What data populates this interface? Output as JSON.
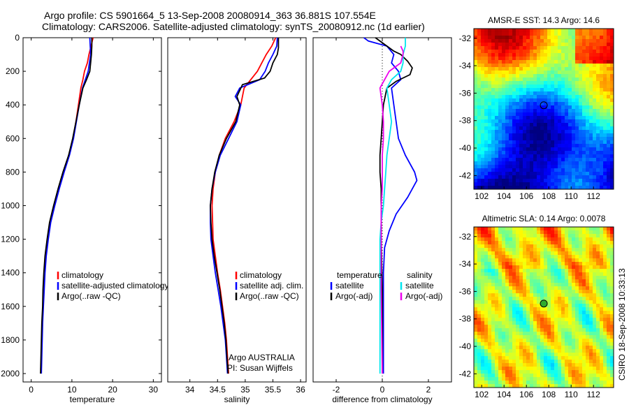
{
  "figure": {
    "title_line1": "Argo profile: CS 5901664_5 13-Sep-2008 20080914_363 36.881S 107.554E",
    "title_line2": "Climatology: CARS2006. Satellite-adjusted climatology: synTS_20080912.nc (1d earlier)",
    "side_label": "CSIRO 18-Sep-2008 10:33:13",
    "annotation_line1": "Argo AUSTRALIA",
    "annotation_line2": "PI: Susan Wijffels"
  },
  "colors": {
    "climatology": "#ff0000",
    "satellite": "#0000ff",
    "argo": "#000000",
    "salinity_satellite": "#00e5ee",
    "salinity_argo": "#ee00ee"
  },
  "chart_data": [
    {
      "type": "line",
      "name": "temperature-profile",
      "xlabel": "temperature",
      "ylabel": "",
      "xlim": [
        -2,
        32
      ],
      "ylim": [
        2050,
        0
      ],
      "xticks": [
        0,
        10,
        20,
        30
      ],
      "yticks": [
        0,
        200,
        400,
        600,
        800,
        1000,
        1200,
        1400,
        1600,
        1800,
        2000
      ],
      "legend": [
        "climatology",
        "satellite-adjusted climatology",
        "Argo(..raw -QC)"
      ],
      "series": [
        {
          "name": "climatology",
          "color": "#ff0000",
          "points": [
            [
              15.2,
              0
            ],
            [
              15.0,
              20
            ],
            [
              14.7,
              50
            ],
            [
              14.2,
              100
            ],
            [
              13.8,
              150
            ],
            [
              13.1,
              200
            ],
            [
              12.7,
              250
            ],
            [
              12.2,
              300
            ],
            [
              11.6,
              400
            ],
            [
              11.0,
              500
            ],
            [
              10.3,
              600
            ],
            [
              9.3,
              700
            ],
            [
              8.0,
              800
            ],
            [
              6.8,
              900
            ],
            [
              5.7,
              1000
            ],
            [
              4.7,
              1100
            ],
            [
              4.1,
              1200
            ],
            [
              3.6,
              1300
            ],
            [
              3.3,
              1400
            ],
            [
              3.1,
              1500
            ],
            [
              2.9,
              1600
            ],
            [
              2.7,
              1700
            ],
            [
              2.6,
              1800
            ],
            [
              2.5,
              1900
            ],
            [
              2.4,
              2000
            ]
          ]
        },
        {
          "name": "satellite-adjusted climatology",
          "color": "#0000ff",
          "points": [
            [
              14.4,
              0
            ],
            [
              14.5,
              50
            ],
            [
              14.6,
              100
            ],
            [
              14.3,
              150
            ],
            [
              14.0,
              200
            ],
            [
              13.3,
              250
            ],
            [
              12.6,
              300
            ],
            [
              11.8,
              400
            ],
            [
              11.1,
              500
            ],
            [
              10.4,
              600
            ],
            [
              9.4,
              700
            ],
            [
              8.1,
              800
            ],
            [
              6.9,
              900
            ],
            [
              5.8,
              1000
            ],
            [
              4.8,
              1100
            ],
            [
              4.2,
              1200
            ],
            [
              3.7,
              1300
            ],
            [
              3.4,
              1400
            ],
            [
              3.2,
              1500
            ],
            [
              3.0,
              1600
            ],
            [
              2.8,
              1700
            ],
            [
              2.7,
              1800
            ],
            [
              2.6,
              1900
            ],
            [
              2.5,
              2000
            ]
          ]
        },
        {
          "name": "Argo(..raw -QC)",
          "color": "#000000",
          "points": [
            [
              14.9,
              0
            ],
            [
              14.9,
              50
            ],
            [
              14.8,
              100
            ],
            [
              14.6,
              150
            ],
            [
              14.4,
              200
            ],
            [
              13.6,
              250
            ],
            [
              12.7,
              300
            ],
            [
              11.8,
              400
            ],
            [
              11.0,
              500
            ],
            [
              10.2,
              600
            ],
            [
              9.2,
              700
            ],
            [
              7.8,
              800
            ],
            [
              6.6,
              900
            ],
            [
              5.5,
              1000
            ],
            [
              4.5,
              1100
            ],
            [
              3.9,
              1200
            ],
            [
              3.4,
              1300
            ],
            [
              3.1,
              1400
            ],
            [
              2.9,
              1500
            ],
            [
              2.8,
              1600
            ],
            [
              2.6,
              1700
            ],
            [
              2.5,
              1800
            ],
            [
              2.4,
              1900
            ],
            [
              2.3,
              2000
            ]
          ]
        }
      ]
    },
    {
      "type": "line",
      "name": "salinity-profile",
      "xlabel": "salinity",
      "ylabel": "",
      "xlim": [
        33.6,
        36.1
      ],
      "ylim": [
        2050,
        0
      ],
      "xticks": [
        34,
        34.5,
        35,
        35.5,
        36
      ],
      "yticks": [],
      "legend": [
        "climatology",
        "satellite adj. clim.",
        "Argo(..raw -QC)"
      ],
      "series": [
        {
          "name": "climatology",
          "color": "#ff0000",
          "points": [
            [
              35.55,
              0
            ],
            [
              35.48,
              50
            ],
            [
              35.38,
              100
            ],
            [
              35.3,
              150
            ],
            [
              35.22,
              200
            ],
            [
              35.1,
              250
            ],
            [
              34.98,
              300
            ],
            [
              34.92,
              400
            ],
            [
              34.8,
              500
            ],
            [
              34.64,
              600
            ],
            [
              34.53,
              700
            ],
            [
              34.46,
              800
            ],
            [
              34.42,
              900
            ],
            [
              34.4,
              1000
            ],
            [
              34.41,
              1100
            ],
            [
              34.42,
              1200
            ],
            [
              34.46,
              1300
            ],
            [
              34.5,
              1400
            ],
            [
              34.55,
              1500
            ],
            [
              34.59,
              1600
            ],
            [
              34.63,
              1700
            ],
            [
              34.66,
              1800
            ],
            [
              34.68,
              1900
            ],
            [
              34.7,
              2000
            ]
          ]
        },
        {
          "name": "satellite adj. clim.",
          "color": "#0000ff",
          "points": [
            [
              35.58,
              0
            ],
            [
              35.57,
              50
            ],
            [
              35.5,
              100
            ],
            [
              35.42,
              150
            ],
            [
              35.36,
              200
            ],
            [
              35.26,
              250
            ],
            [
              34.9,
              300
            ],
            [
              34.82,
              350
            ],
            [
              34.92,
              400
            ],
            [
              34.85,
              500
            ],
            [
              34.7,
              600
            ],
            [
              34.55,
              700
            ],
            [
              34.46,
              800
            ],
            [
              34.4,
              900
            ],
            [
              34.37,
              1000
            ],
            [
              34.37,
              1100
            ],
            [
              34.38,
              1200
            ],
            [
              34.42,
              1300
            ],
            [
              34.46,
              1400
            ],
            [
              34.51,
              1500
            ],
            [
              34.56,
              1600
            ],
            [
              34.6,
              1700
            ],
            [
              34.64,
              1800
            ],
            [
              34.66,
              1900
            ],
            [
              34.68,
              2000
            ]
          ]
        },
        {
          "name": "Argo(..raw -QC)",
          "color": "#000000",
          "points": [
            [
              35.6,
              0
            ],
            [
              35.6,
              60
            ],
            [
              35.58,
              100
            ],
            [
              35.5,
              150
            ],
            [
              35.45,
              200
            ],
            [
              35.35,
              240
            ],
            [
              34.95,
              280
            ],
            [
              34.85,
              350
            ],
            [
              34.9,
              400
            ],
            [
              34.83,
              500
            ],
            [
              34.66,
              600
            ],
            [
              34.53,
              700
            ],
            [
              34.45,
              800
            ],
            [
              34.4,
              900
            ],
            [
              34.37,
              1000
            ],
            [
              34.38,
              1100
            ],
            [
              34.4,
              1200
            ],
            [
              34.44,
              1300
            ],
            [
              34.49,
              1400
            ],
            [
              34.54,
              1500
            ],
            [
              34.58,
              1600
            ],
            [
              34.62,
              1700
            ],
            [
              34.65,
              1800
            ],
            [
              34.67,
              1900
            ],
            [
              34.69,
              2000
            ]
          ]
        }
      ]
    },
    {
      "type": "line",
      "name": "difference-profile",
      "xlabel": "difference from climatology",
      "ylabel": "",
      "xlim": [
        -3,
        3
      ],
      "ylim": [
        2050,
        0
      ],
      "xticks": [
        -2,
        0,
        2
      ],
      "yticks": [],
      "zero_line": true,
      "legend_groups": [
        {
          "title": "temperature",
          "entries": [
            "satellite",
            "Argo(-adj)"
          ]
        },
        {
          "title": "salinity",
          "entries": [
            "satellite",
            "Argo(-adj)"
          ]
        }
      ],
      "series": [
        {
          "name": "temperature satellite",
          "color": "#0000ff",
          "points": [
            [
              -0.8,
              0
            ],
            [
              -0.6,
              20
            ],
            [
              0.2,
              50
            ],
            [
              0.5,
              100
            ],
            [
              0.4,
              150
            ],
            [
              0.7,
              200
            ],
            [
              0.8,
              250
            ],
            [
              0.4,
              300
            ],
            [
              0.5,
              400
            ],
            [
              0.6,
              500
            ],
            [
              0.7,
              600
            ],
            [
              1.0,
              700
            ],
            [
              1.4,
              800
            ],
            [
              1.5,
              850
            ],
            [
              1.1,
              950
            ],
            [
              0.6,
              1050
            ],
            [
              0.3,
              1150
            ],
            [
              0.1,
              1250
            ],
            [
              0.05,
              1400
            ],
            [
              0.05,
              1700
            ],
            [
              0.05,
              2000
            ]
          ]
        },
        {
          "name": "temperature Argo(-adj)",
          "color": "#000000",
          "points": [
            [
              -0.3,
              0
            ],
            [
              0.2,
              50
            ],
            [
              0.5,
              80
            ],
            [
              0.8,
              100
            ],
            [
              1.1,
              140
            ],
            [
              1.3,
              180
            ],
            [
              1.2,
              220
            ],
            [
              0.6,
              260
            ],
            [
              0.2,
              300
            ],
            [
              0.05,
              400
            ],
            [
              0.0,
              500
            ],
            [
              -0.05,
              600
            ],
            [
              -0.1,
              700
            ],
            [
              -0.1,
              800
            ],
            [
              -0.05,
              900
            ],
            [
              -0.05,
              1000
            ],
            [
              -0.05,
              1200
            ],
            [
              0.0,
              1500
            ],
            [
              0.0,
              2000
            ]
          ]
        },
        {
          "name": "salinity satellite",
          "color": "#00e5ee",
          "points": [
            [
              1.0,
              0
            ],
            [
              1.0,
              50
            ],
            [
              0.9,
              100
            ],
            [
              0.9,
              150
            ],
            [
              0.8,
              200
            ],
            [
              0.4,
              250
            ],
            [
              0.2,
              300
            ],
            [
              0.3,
              400
            ],
            [
              0.4,
              500
            ],
            [
              0.3,
              600
            ],
            [
              0.2,
              700
            ],
            [
              0.15,
              800
            ],
            [
              0.1,
              900
            ],
            [
              0.05,
              1000
            ],
            [
              -0.05,
              1100
            ],
            [
              -0.1,
              1200
            ],
            [
              -0.1,
              1400
            ],
            [
              -0.1,
              1600
            ],
            [
              -0.1,
              1800
            ],
            [
              -0.1,
              2000
            ]
          ]
        },
        {
          "name": "salinity Argo(-adj)",
          "color": "#ee00ee",
          "points": [
            [
              0.8,
              50
            ],
            [
              0.9,
              80
            ],
            [
              0.9,
              100
            ],
            [
              0.8,
              150
            ],
            [
              0.3,
              200
            ],
            [
              0.1,
              250
            ],
            [
              -0.1,
              300
            ],
            [
              0.0,
              400
            ],
            [
              0.05,
              500
            ],
            [
              0.05,
              600
            ],
            [
              0.0,
              700
            ],
            [
              0.0,
              800
            ],
            [
              0.0,
              900
            ],
            [
              -0.05,
              1000
            ],
            [
              -0.05,
              1200
            ],
            [
              -0.05,
              1500
            ],
            [
              0.0,
              2000
            ]
          ]
        }
      ]
    },
    {
      "type": "heatmap",
      "name": "amsr-sst-map",
      "title": "AMSR-E SST: 14.3 Argo: 14.6",
      "xlim": [
        101.3,
        113.8
      ],
      "ylim": [
        -43,
        -31.3
      ],
      "xticks": [
        102,
        104,
        106,
        108,
        110,
        112
      ],
      "yticks": [
        -32,
        -34,
        -36,
        -38,
        -40,
        -42
      ],
      "marker": {
        "lon": 107.554,
        "lat": -36.881
      }
    },
    {
      "type": "heatmap",
      "name": "altimetric-sla-map",
      "title": "Altimetric SLA: 0.14 Argo: 0.0078",
      "xlim": [
        101.3,
        113.8
      ],
      "ylim": [
        -43,
        -31.3
      ],
      "xticks": [
        102,
        104,
        106,
        108,
        110,
        112
      ],
      "yticks": [
        -32,
        -34,
        -36,
        -38,
        -40,
        -42
      ],
      "marker": {
        "lon": 107.554,
        "lat": -36.881
      }
    }
  ]
}
